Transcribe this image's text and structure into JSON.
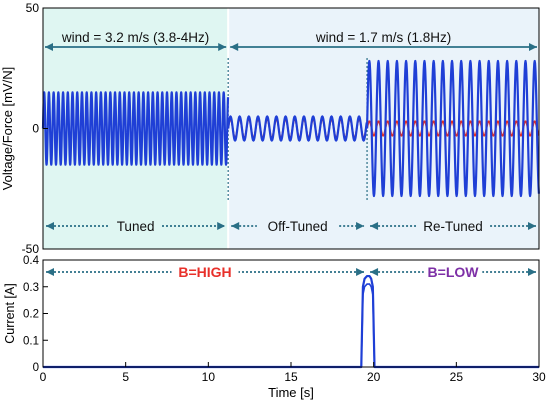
{
  "chart_data": [
    {
      "type": "line",
      "xlim": [
        0,
        30
      ],
      "ylim": [
        -50,
        50
      ],
      "ylabel": "Voltage/Force [mV/N]",
      "y_ticks": [
        {
          "value": -50,
          "label": "-50"
        },
        {
          "value": 0,
          "label": "0"
        },
        {
          "value": 50,
          "label": "50"
        }
      ],
      "colors": {
        "voltage": "#1f3fd6",
        "force": "#e0322a",
        "region_wind1": "#dff6f2",
        "region_wind2": "#eaf3fa",
        "arrow": "#2a6f86"
      },
      "series": [
        {
          "segments": [
            {
              "t_start": 0,
              "t_end": 11.2,
              "amplitude": 15,
              "frequency_hz": 3.5
            },
            {
              "t_start": 11.2,
              "t_end": 19.6,
              "amplitude": 5,
              "frequency_hz": 1.8
            },
            {
              "t_start": 19.6,
              "t_end": 30,
              "amplitude": 28,
              "frequency_hz": 1.8
            }
          ]
        },
        {
          "segments": [
            {
              "t_start": 11.2,
              "t_end": 19.6,
              "amplitude": 4,
              "frequency_hz": 1.8
            },
            {
              "t_start": 19.6,
              "t_end": 30,
              "amplitude": 3,
              "frequency_hz": 1.8
            }
          ]
        }
      ],
      "regions": [
        {
          "t_start": 0,
          "t_end": 11.2,
          "label": "wind  = 3.2 m/s (3.8-4Hz)"
        },
        {
          "t_start": 11.2,
          "t_end": 30,
          "label": "wind = 1.7 m/s (1.8Hz)"
        }
      ],
      "annotations": [
        {
          "label": "Tuned",
          "t_start": 0,
          "t_end": 11.2
        },
        {
          "label": "Off-Tuned",
          "t_start": 11.2,
          "t_end": 19.6
        },
        {
          "label": "Re-Tuned",
          "t_start": 19.6,
          "t_end": 30
        }
      ],
      "markers_t": [
        11.2,
        19.6
      ]
    },
    {
      "type": "line",
      "xlabel": "Time  [s]",
      "ylabel": "Current [A]",
      "xlim": [
        0,
        30
      ],
      "ylim": [
        0,
        0.4
      ],
      "x_ticks": [
        {
          "value": 0,
          "label": "0"
        },
        {
          "value": 5,
          "label": "5"
        },
        {
          "value": 10,
          "label": "10"
        },
        {
          "value": 15,
          "label": "15"
        },
        {
          "value": 20,
          "label": "20"
        },
        {
          "value": 25,
          "label": "25"
        },
        {
          "value": 30,
          "label": "30"
        }
      ],
      "y_ticks": [
        {
          "value": 0,
          "label": "0"
        },
        {
          "value": 0.1,
          "label": "0.1"
        },
        {
          "value": 0.2,
          "label": "0.2"
        },
        {
          "value": 0.3,
          "label": "0.3"
        },
        {
          "value": 0.4,
          "label": "0.4"
        }
      ],
      "series": [
        {
          "points": [
            [
              0,
              0
            ],
            [
              19.25,
              0
            ],
            [
              19.35,
              0.3
            ],
            [
              19.45,
              0.33
            ],
            [
              19.6,
              0.34
            ],
            [
              19.75,
              0.34
            ],
            [
              19.85,
              0.33
            ],
            [
              19.95,
              0.3
            ],
            [
              20.05,
              0
            ],
            [
              30,
              0
            ]
          ]
        }
      ],
      "annotations": [
        {
          "label": "B=HIGH",
          "t_start": 0,
          "t_end": 19.6,
          "color": "#e8302a"
        },
        {
          "label": "B=LOW",
          "t_start": 19.6,
          "t_end": 30,
          "color": "#7d2fa6"
        }
      ]
    }
  ]
}
